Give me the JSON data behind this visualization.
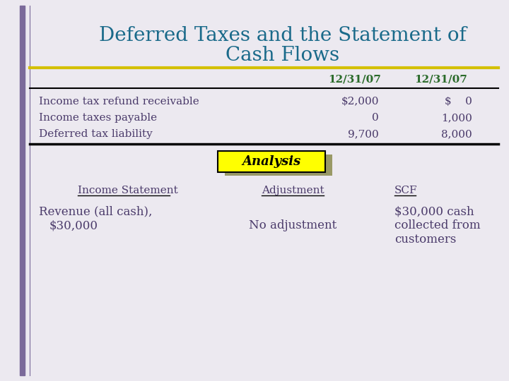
{
  "title_line1": "Deferred Taxes and the Statement of",
  "title_line2": "Cash Flows",
  "title_color": "#1a6a8a",
  "background_color": "#ece9f0",
  "left_bar_color": "#7b6a9a",
  "gold_line_color": "#d4c000",
  "col_header_color": "#2a6a2a",
  "col1_header": "12/31/07",
  "col2_header": "12/31/07",
  "rows": [
    {
      "label": "Income tax refund receivable",
      "col1": "$2,000",
      "col2": "$    0"
    },
    {
      "label": "Income taxes payable",
      "col1": "0",
      "col2": "1,000"
    },
    {
      "label": "Deferred tax liability",
      "col1": "9,700",
      "col2": "8,000"
    }
  ],
  "analysis_label": "Analysis",
  "analysis_bg": "#ffff00",
  "analysis_shadow": "#999966",
  "section2_col1": "Income Statement",
  "section2_col2": "Adjustment",
  "section2_col3": "SCF",
  "section2_row_label1": "Revenue (all cash),",
  "section2_row_label2": "  $30,000",
  "section2_row_col2": "No adjustment",
  "section2_row_col3_line1": "$30,000 cash",
  "section2_row_col3_line2": "collected from",
  "section2_row_col3_line3": "customers",
  "body_text_color": "#4a3a6a",
  "section2_label_color": "#4a3a6a",
  "header_underline_color": "#000000",
  "section2_underline_color": "#000000"
}
